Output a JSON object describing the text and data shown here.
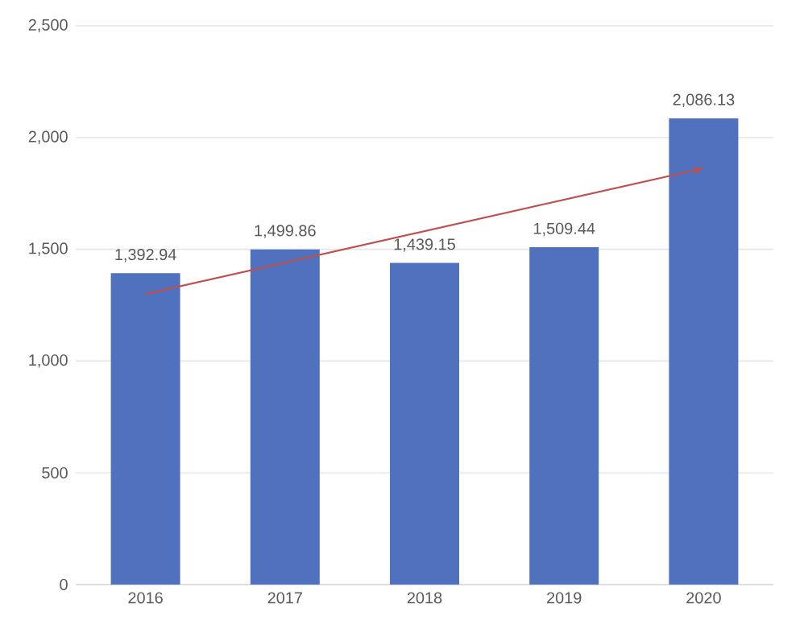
{
  "chart_data": {
    "type": "bar",
    "categories": [
      "2016",
      "2017",
      "2018",
      "2019",
      "2020"
    ],
    "values": [
      1392.94,
      1499.86,
      1439.15,
      1509.44,
      2086.13
    ],
    "value_labels": [
      "1,392.94",
      "1,499.86",
      "1,439.15",
      "1,509.44",
      "2,086.13"
    ],
    "color": "#4f71be",
    "ylim": [
      0,
      2500
    ],
    "yticks": [
      0,
      500,
      {
        "value": 1000,
        "label": "1,000"
      },
      {
        "value": 1500,
        "label": "1,500"
      },
      {
        "value": 2000,
        "label": "2,000"
      },
      {
        "value": 2500,
        "label": "2,500"
      }
    ],
    "grid": "y"
  }
}
